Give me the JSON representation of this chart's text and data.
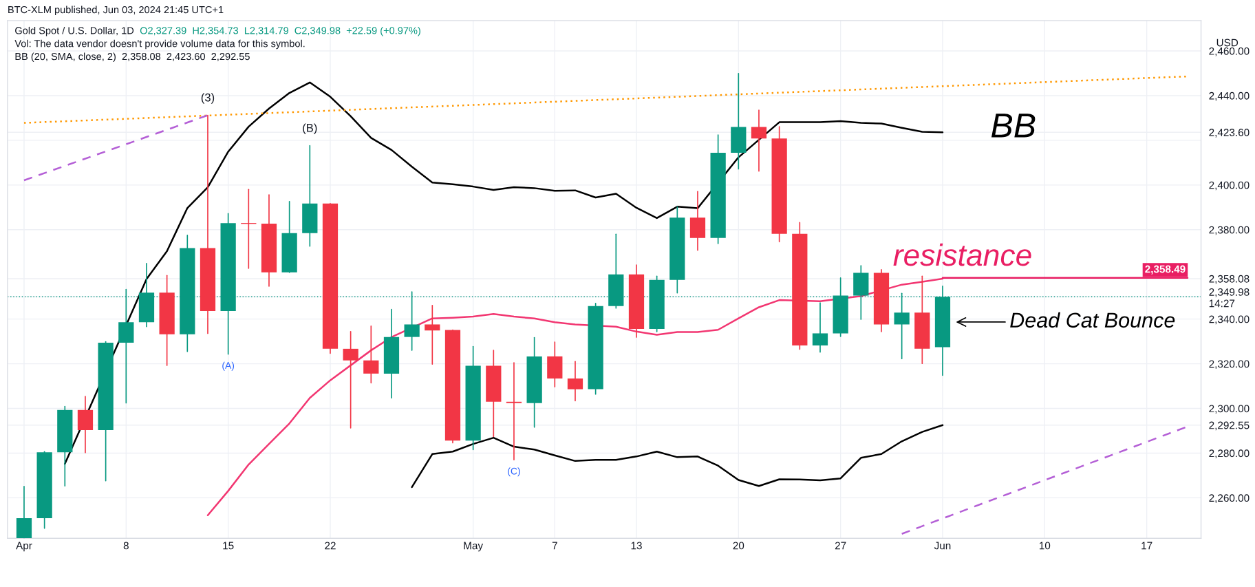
{
  "chart_data": {
    "type": "candlestick",
    "title": "Gold Spot / U.S. Dollar, 1D",
    "subtitle": "O2,327.39  H2,354.73  L2,314.79  C2,349.98  +22.59 (+0.97%)",
    "ylabel": "USD",
    "annotations": [
      "BTC-XLM published, Jun 03, 2024 21:45 UTC+1",
      "Vol: The data vendor doesn't provide volume data for this symbol.",
      "BB (20, SMA, close, 2)  2,358.08  2,423.60  2,292.55",
      {
        "text": "(3)",
        "y": 2431.2
      },
      {
        "text": "(B)",
        "y": 2417.6
      },
      {
        "text": "(A)",
        "y": 2324.3
      },
      {
        "text": "(C)",
        "y": 2277.0
      },
      "Dead Cat Bounce"
    ],
    "categories": [
      "Apr",
      null,
      null,
      null,
      null,
      "8",
      null,
      null,
      null,
      null,
      "15",
      null,
      null,
      null,
      null,
      "22",
      null,
      null,
      null,
      null,
      null,
      null,
      "May",
      null,
      null,
      null,
      "7",
      null,
      null,
      null,
      "13",
      null,
      null,
      null,
      null,
      "20",
      null,
      null,
      null,
      null,
      "27",
      null,
      null,
      null,
      null,
      "Jun",
      null,
      null,
      null,
      null,
      "10",
      null,
      null,
      null,
      null,
      "17",
      null,
      null
    ],
    "ohlc": [
      [
        2242.0,
        2265.1,
        2242.0,
        2250.9
      ],
      [
        2250.9,
        2280.7,
        2246.4,
        2280.4
      ],
      [
        2280.4,
        2300.9,
        2265.3,
        2299.3
      ],
      [
        2299.3,
        2305.4,
        2280.2,
        2290.3
      ],
      [
        2290.3,
        2329.9,
        2267.6,
        2329.4
      ],
      [
        2329.4,
        2353.3,
        2302.5,
        2338.6
      ],
      [
        2338.6,
        2364.9,
        2336.6,
        2351.8
      ],
      [
        2351.8,
        2359.5,
        2319.3,
        2333.2
      ],
      [
        2333.2,
        2377.5,
        2325.5,
        2371.8
      ],
      [
        2371.8,
        2431.2,
        2333.6,
        2343.6
      ],
      [
        2343.6,
        2387.2,
        2324.3,
        2382.9
      ],
      [
        2383.0,
        2398.0,
        2362.7,
        2382.6
      ],
      [
        2382.7,
        2395.6,
        2354.7,
        2360.9
      ],
      [
        2360.9,
        2392.6,
        2360.9,
        2378.5
      ],
      [
        2378.5,
        2417.6,
        2372.6,
        2391.7
      ],
      [
        2391.7,
        2391.7,
        2324.7,
        2326.7
      ],
      [
        2326.7,
        2334.4,
        2291.3,
        2321.5
      ],
      [
        2321.5,
        2336.9,
        2311.4,
        2315.6
      ],
      [
        2315.6,
        2344.3,
        2304.7,
        2332.0
      ],
      [
        2332.0,
        2352.2,
        2326.0,
        2337.6
      ],
      [
        2337.6,
        2346.1,
        2319.8,
        2334.9
      ],
      [
        2335.1,
        2335.1,
        2284.6,
        2285.6
      ],
      [
        2285.6,
        2327.7,
        2281.6,
        2319.1
      ],
      [
        2319.1,
        2326.0,
        2287.4,
        2303.0
      ],
      [
        2303.0,
        2320.5,
        2277.0,
        2302.4
      ],
      [
        2302.4,
        2331.7,
        2291.6,
        2323.3
      ],
      [
        2323.3,
        2329.7,
        2309.7,
        2313.4
      ],
      [
        2313.4,
        2321.0,
        2303.4,
        2308.6
      ],
      [
        2308.6,
        2347.0,
        2306.4,
        2345.8
      ],
      [
        2345.8,
        2378.0,
        2344.9,
        2360.0
      ],
      [
        2360.0,
        2364.2,
        2331.9,
        2335.6
      ],
      [
        2335.6,
        2359.2,
        2334.4,
        2357.5
      ],
      [
        2357.5,
        2390.2,
        2351.7,
        2385.4
      ],
      [
        2385.4,
        2397.1,
        2370.8,
        2376.3
      ],
      [
        2376.3,
        2422.4,
        2373.8,
        2414.4
      ],
      [
        2414.4,
        2449.9,
        2407.2,
        2426.0
      ],
      [
        2426.0,
        2433.5,
        2406.2,
        2420.8
      ],
      [
        2420.8,
        2426.1,
        2374.6,
        2378.2
      ],
      [
        2378.2,
        2383.2,
        2326.5,
        2328.2
      ],
      [
        2328.2,
        2347.3,
        2325.2,
        2333.6
      ],
      [
        2333.6,
        2358.4,
        2332.2,
        2350.5
      ],
      [
        2350.5,
        2363.9,
        2339.9,
        2360.7
      ],
      [
        2360.7,
        2362.1,
        2334.4,
        2337.6
      ],
      [
        2337.6,
        2351.5,
        2322.3,
        2342.9
      ],
      [
        2342.9,
        2359.2,
        2320.1,
        2326.7
      ],
      [
        2327.39,
        2354.73,
        2314.79,
        2349.98
      ],
      null,
      null,
      null,
      null,
      null,
      null,
      null,
      null,
      null,
      null,
      null,
      null
    ],
    "colors": [
      "#089981",
      "#089981",
      "#089981",
      "#f23645",
      "#089981",
      "#089981",
      "#089981",
      "#f23645",
      "#089981",
      "#f23645",
      "#089981",
      "#f23645",
      "#f23645",
      "#089981",
      "#089981",
      "#f23645",
      "#f23645",
      "#f23645",
      "#089981",
      "#089981",
      "#f23645",
      "#f23645",
      "#089981",
      "#f23645",
      "#f23645",
      "#089981",
      "#f23645",
      "#f23645",
      "#089981",
      "#089981",
      "#f23645",
      "#089981",
      "#089981",
      "#f23645",
      "#089981",
      "#089981",
      "#f23645",
      "#f23645",
      "#f23645",
      "#089981",
      "#089981",
      "#089981",
      "#f23645",
      "#089981",
      "#f23645",
      "#089981",
      null,
      null,
      null,
      null,
      null,
      null,
      null,
      null,
      null,
      null,
      null,
      null
    ],
    "series": [
      {
        "name": "BB",
        "type": "line",
        "color": "#000000",
        "values": [
          null,
          null,
          2275.2,
          null,
          null,
          null,
          2357.9,
          2370.4,
          2389.7,
          2399.0,
          2414.9,
          2426.1,
          2434.2,
          2441.2,
          2445.9,
          2439.5,
          2430.8,
          2421.1,
          2415.7,
          2408.2,
          2401.1,
          2400.3,
          2399.3,
          2397.8,
          2399.0,
          2398.6,
          2397.4,
          2397.6,
          2394.4,
          2396.1,
          2389.8,
          2385.2,
          2390.3,
          2389.6,
          null,
          2412.4,
          null,
          2428.1,
          2428.1,
          2428.1,
          2428.6,
          2427.8,
          2427.5,
          2425.6,
          2423.8,
          2423.6,
          null,
          null,
          null,
          null,
          null,
          null,
          null,
          null,
          null,
          null,
          null,
          null
        ]
      },
      {
        "type": "line",
        "color": "#f23671",
        "values": [
          null,
          null,
          null,
          null,
          null,
          null,
          null,
          null,
          null,
          2252.2,
          2263.1,
          2274.9,
          2284.1,
          2293.3,
          2304.7,
          2312.6,
          2319.3,
          2326.0,
          2331.9,
          null,
          2340.3,
          2340.6,
          2341.1,
          2342.3,
          2341.1,
          2340.3,
          2338.6,
          2337.6,
          null,
          2336.6,
          2334.4,
          2333.0,
          2334.2,
          2334.2,
          2335.2,
          2340.3,
          2345.3,
          2348.5,
          null,
          2348.0,
          null,
          2350.3,
          null,
          2355.4,
          2356.7,
          2358.08,
          null,
          null,
          null,
          null,
          null,
          null,
          null,
          null,
          null,
          null,
          null,
          null
        ]
      },
      {
        "type": "line",
        "color": "#000000",
        "values": [
          null,
          null,
          null,
          null,
          null,
          null,
          null,
          null,
          null,
          null,
          null,
          null,
          null,
          null,
          null,
          null,
          null,
          null,
          null,
          2264.8,
          2279.6,
          2280.7,
          2284.1,
          2286.9,
          2282.9,
          2281.6,
          2279.0,
          2276.5,
          2277.0,
          2277.0,
          2278.5,
          2280.7,
          2278.2,
          2278.5,
          2274.4,
          2268.0,
          2265.3,
          2268.3,
          2268.2,
          2267.8,
          2268.7,
          2277.9,
          2279.6,
          2285.3,
          2289.5,
          2292.55,
          null,
          null,
          null,
          null,
          null,
          null,
          null,
          null,
          null,
          null,
          null,
          null
        ]
      },
      {
        "type": "line",
        "color": "#ff9800",
        "line_style": "dotted",
        "values": [
          2427.8,
          null,
          null,
          null,
          null,
          null,
          null,
          null,
          null,
          null,
          null,
          null,
          null,
          null,
          null,
          null,
          null,
          null,
          null,
          null,
          null,
          null,
          null,
          null,
          null,
          null,
          null,
          null,
          null,
          null,
          null,
          null,
          null,
          null,
          null,
          null,
          null,
          null,
          null,
          null,
          null,
          null,
          null,
          null,
          null,
          null,
          null,
          null,
          null,
          null,
          null,
          null,
          null,
          null,
          null,
          null,
          null,
          2448.6
        ]
      },
      {
        "type": "line",
        "color": "#b45fd6",
        "line_style": "dashed",
        "values": [
          2402.1,
          null,
          null,
          null,
          null,
          null,
          null,
          null,
          null,
          2431.2,
          null,
          null,
          null,
          null,
          null,
          null,
          null,
          null,
          null,
          null,
          null,
          null,
          null,
          null,
          null,
          null,
          null,
          null,
          null,
          null,
          null,
          null,
          null,
          null,
          null,
          null,
          null,
          null,
          null,
          null,
          null,
          null,
          null,
          null,
          null,
          null,
          null,
          null,
          null,
          null,
          null,
          null,
          null,
          null,
          null,
          null,
          null,
          null
        ]
      },
      {
        "type": "line",
        "color": "#b45fd6",
        "line_style": "dashed",
        "values": [
          null,
          null,
          null,
          null,
          null,
          null,
          null,
          null,
          null,
          null,
          null,
          null,
          null,
          null,
          null,
          null,
          null,
          null,
          null,
          null,
          null,
          null,
          null,
          null,
          null,
          null,
          null,
          null,
          null,
          null,
          null,
          null,
          null,
          null,
          null,
          null,
          null,
          null,
          null,
          null,
          null,
          null,
          null,
          2243.9,
          null,
          null,
          null,
          null,
          null,
          null,
          null,
          null,
          null,
          null,
          null,
          null,
          null,
          2291.9
        ]
      },
      {
        "name": "resistance",
        "type": "line",
        "color": "#e91e63",
        "values": [
          null,
          null,
          null,
          null,
          null,
          null,
          null,
          null,
          null,
          null,
          null,
          null,
          null,
          null,
          null,
          null,
          null,
          null,
          null,
          null,
          null,
          null,
          null,
          null,
          null,
          null,
          null,
          null,
          null,
          null,
          null,
          null,
          null,
          null,
          null,
          null,
          null,
          null,
          null,
          null,
          null,
          null,
          null,
          null,
          null,
          2358.49,
          null,
          null,
          null,
          null,
          null,
          null,
          null,
          null,
          null,
          null,
          null,
          2358.49
        ],
        "value_labels": [
          null,
          null,
          null,
          null,
          null,
          null,
          null,
          null,
          null,
          null,
          null,
          null,
          null,
          null,
          null,
          null,
          null,
          null,
          null,
          null,
          null,
          null,
          null,
          null,
          null,
          null,
          null,
          null,
          null,
          null,
          null,
          null,
          null,
          null,
          null,
          null,
          null,
          null,
          null,
          null,
          null,
          null,
          null,
          null,
          null,
          null,
          null,
          null,
          null,
          null,
          null,
          null,
          null,
          null,
          null,
          null,
          null,
          "2,358.49"
        ]
      }
    ],
    "ref_lines": [
      {
        "axis": "y",
        "value": 2349.98,
        "color": "#089981",
        "line_style": "dotted"
      }
    ],
    "ylim": [
      2241.9,
      2473.6
    ],
    "yticks": [
      {
        "value": 2260,
        "label": "2,260.00"
      },
      {
        "value": 2280,
        "label": "2,280.00"
      },
      {
        "value": 2292.55,
        "label": "2,292.55"
      },
      {
        "value": 2300,
        "label": "2,300.00"
      },
      {
        "value": 2320,
        "label": "2,320.00"
      },
      {
        "value": 2340,
        "label": "2,340.00"
      },
      {
        "value": 2349.98,
        "label": "2,349.98\n14:27"
      },
      {
        "value": 2358.08,
        "label": "2,358.08"
      },
      {
        "value": 2380,
        "label": "2,380.00"
      },
      {
        "value": 2400,
        "label": "2,400.00"
      },
      {
        "value": 2420,
        "label": null
      },
      {
        "value": 2423.6,
        "label": "2,423.60"
      },
      {
        "value": 2440,
        "label": "2,440.00"
      },
      {
        "value": 2460,
        "label": "2,460.00"
      }
    ],
    "grid": true
  }
}
